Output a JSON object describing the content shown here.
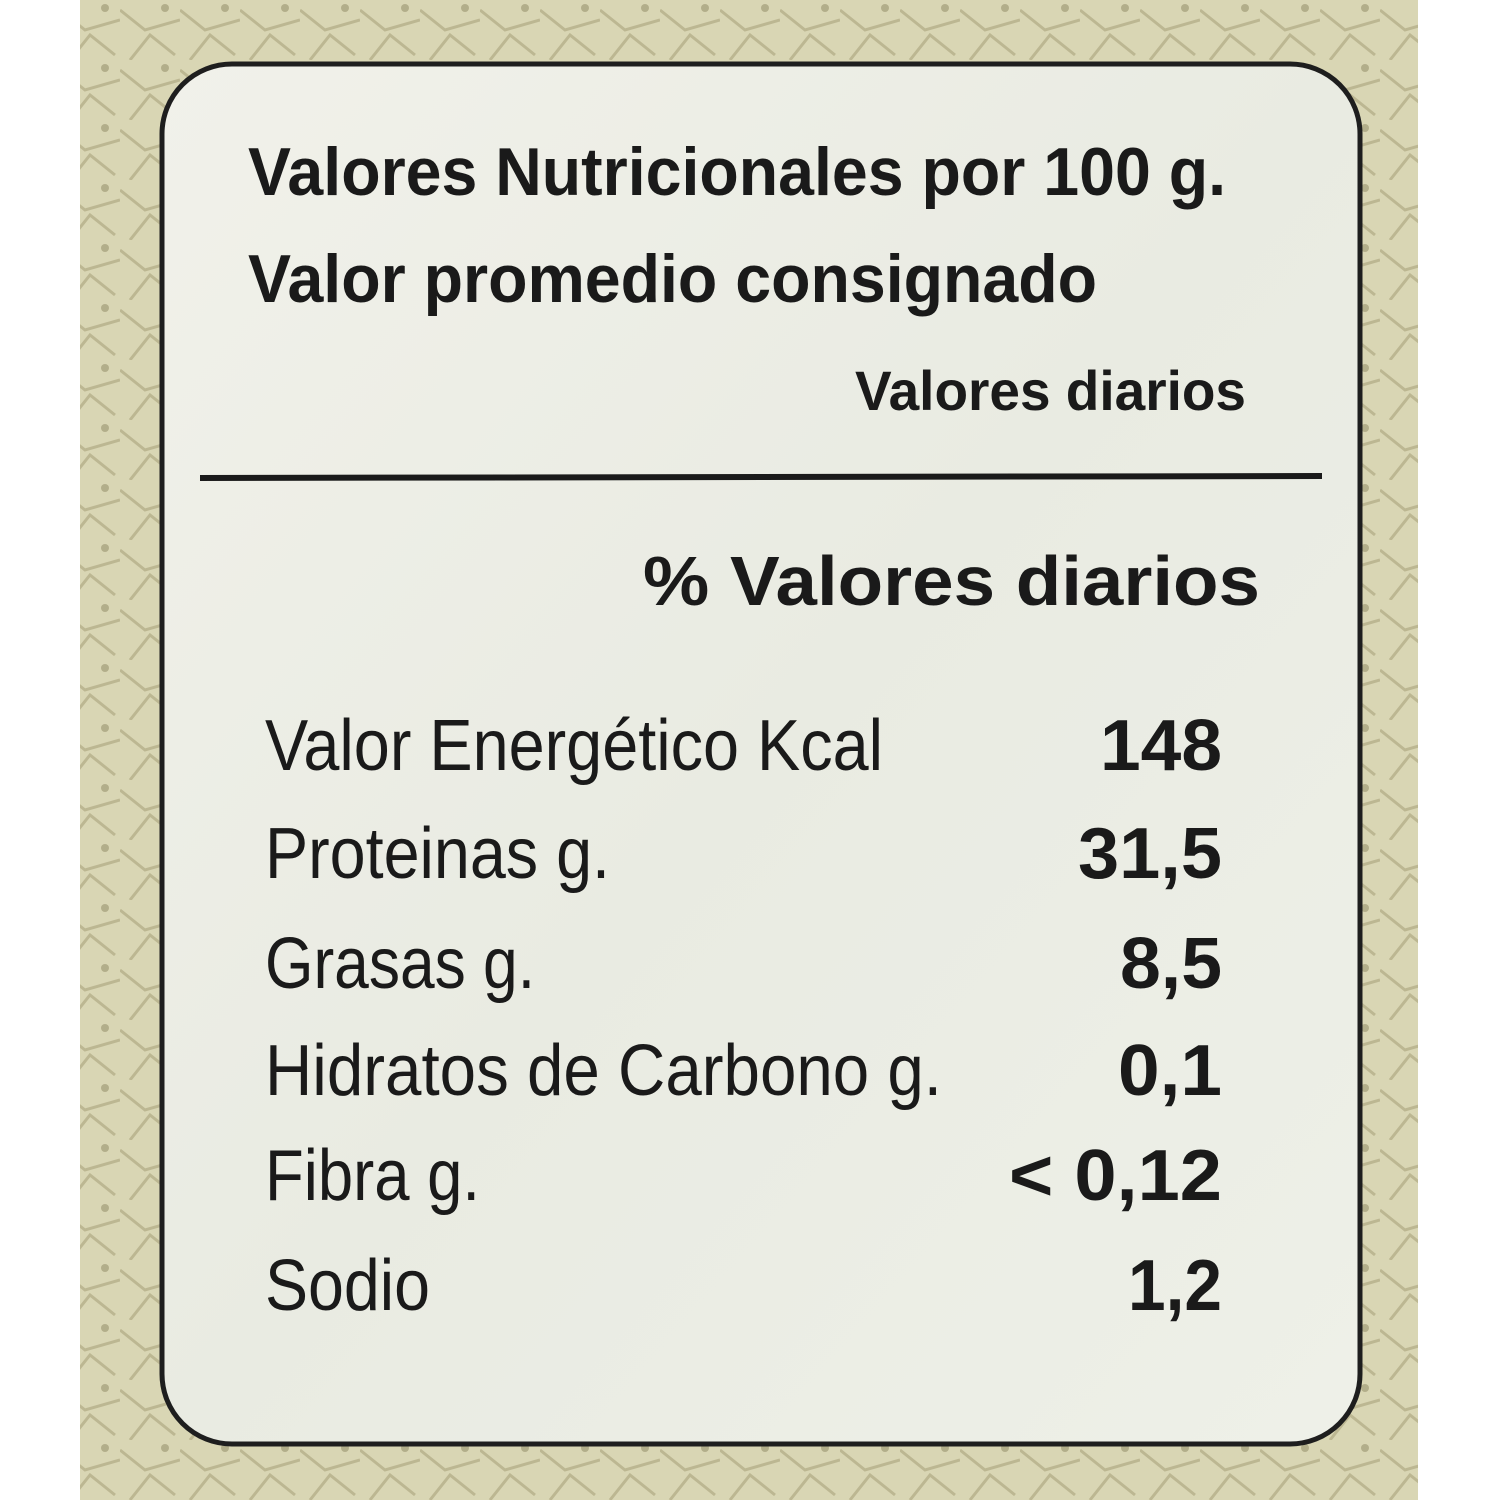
{
  "header": {
    "title": "Valores Nutricionales por 100 g.",
    "subtitle": "Valor promedio consignado",
    "column_label": "Valores diarios"
  },
  "table": {
    "column_header": "% Valores diarios",
    "rows": [
      [
        "Valor Energético Kcal",
        "148"
      ],
      [
        "Proteinas g.",
        "31,5"
      ],
      [
        "Grasas g.",
        "8,5"
      ],
      [
        "Hidratos de Carbono g.",
        "0,1"
      ],
      [
        "Fibra g.",
        "< 0,12"
      ],
      [
        "Sodio",
        "1,2"
      ]
    ]
  }
}
